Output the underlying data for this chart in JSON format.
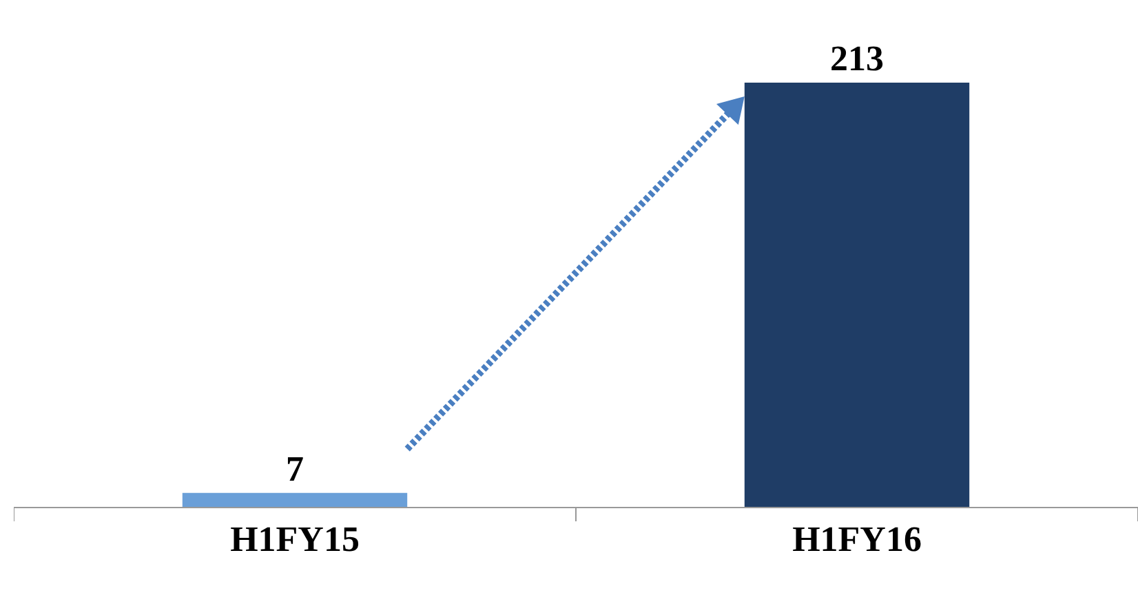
{
  "chart_data": {
    "type": "bar",
    "categories": [
      "H1FY15",
      "H1FY16"
    ],
    "values": [
      7,
      213
    ],
    "colors": [
      "#6a9fd8",
      "#1f3d66"
    ],
    "data_labels": true
  }
}
